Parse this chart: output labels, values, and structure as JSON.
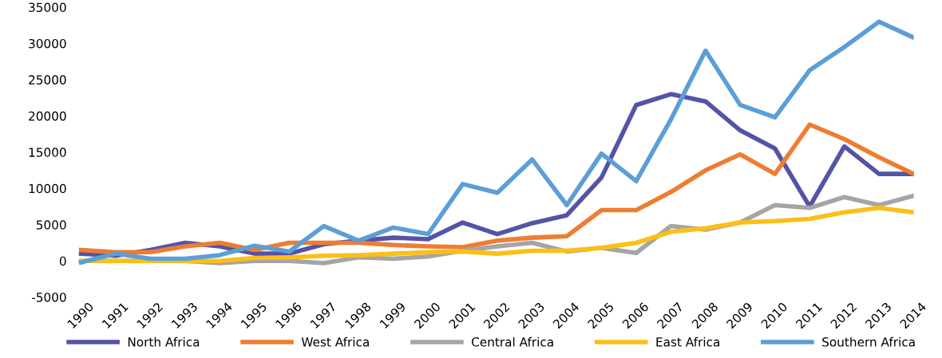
{
  "chart_data": {
    "type": "line",
    "categories": [
      "1990",
      "1991",
      "1992",
      "1993",
      "1994",
      "1995",
      "1996",
      "1997",
      "1998",
      "1999",
      "2000",
      "2001",
      "2002",
      "2003",
      "2004",
      "2005",
      "2006",
      "2007",
      "2008",
      "2009",
      "2010",
      "2011",
      "2012",
      "2013",
      "2014"
    ],
    "series": [
      {
        "name": "North Africa",
        "color": "#5354a8",
        "values": [
          1000,
          700,
          1500,
          2500,
          2000,
          1000,
          1000,
          2300,
          2800,
          3200,
          3000,
          5300,
          3700,
          5200,
          6300,
          11500,
          21500,
          23000,
          22000,
          18000,
          15500,
          7500,
          15800,
          12000,
          12000
        ]
      },
      {
        "name": "West Africa",
        "color": "#ee7d31",
        "values": [
          1500,
          1200,
          1200,
          2000,
          2500,
          1500,
          2500,
          2500,
          2500,
          2200,
          2000,
          1900,
          2800,
          3200,
          3400,
          7000,
          7000,
          9500,
          12500,
          14700,
          12000,
          18800,
          16800,
          14300,
          12000
        ]
      },
      {
        "name": "Central Africa",
        "color": "#a5a5a5",
        "values": [
          0,
          0,
          0,
          0,
          -300,
          0,
          0,
          -300,
          500,
          300,
          600,
          1400,
          2000,
          2500,
          1300,
          1800,
          1100,
          4800,
          4300,
          5300,
          7700,
          7300,
          8800,
          7700,
          9000
        ]
      },
      {
        "name": "East Africa",
        "color": "#fbbf16",
        "values": [
          0,
          0,
          0,
          0,
          0,
          400,
          500,
          700,
          800,
          1000,
          1200,
          1300,
          1000,
          1400,
          1400,
          1800,
          2500,
          4000,
          4500,
          5300,
          5500,
          5800,
          6700,
          7300,
          6700
        ]
      },
      {
        "name": "Southern Africa",
        "color": "#5c9ed7",
        "values": [
          -200,
          1000,
          300,
          300,
          800,
          2100,
          1300,
          4800,
          2800,
          4600,
          3700,
          10600,
          9400,
          14000,
          7700,
          14800,
          11000,
          19500,
          29000,
          21500,
          19800,
          26300,
          29500,
          33000,
          30800
        ]
      }
    ],
    "ylim": [
      -5000,
      35000
    ],
    "yticks": [
      -5000,
      0,
      5000,
      10000,
      15000,
      20000,
      25000,
      30000,
      35000
    ],
    "grid": false,
    "legend": "bottom",
    "marker": "none",
    "line_style": "solid"
  }
}
